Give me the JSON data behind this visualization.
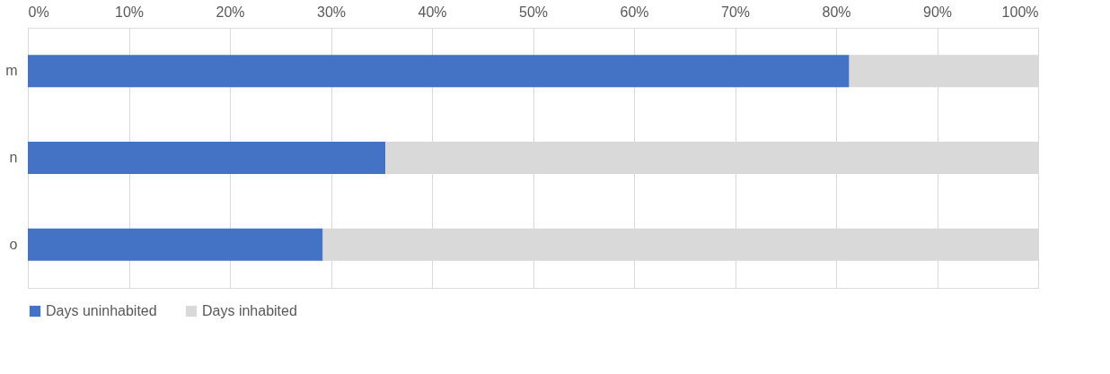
{
  "chart_data": {
    "type": "bar",
    "orientation": "horizontal",
    "stacked": true,
    "categories": [
      "m",
      "n",
      "o"
    ],
    "series": [
      {
        "name": "Days uninhabited",
        "color": "#4472c4",
        "values": [
          81.3,
          35.4,
          29.2
        ]
      },
      {
        "name": "Days inhabited",
        "color": "#d9d9d9",
        "values": [
          18.7,
          64.6,
          70.8
        ]
      }
    ],
    "xlim": [
      0,
      100
    ],
    "xticks": [
      {
        "value": 0,
        "label": "0%"
      },
      {
        "value": 10,
        "label": "10%"
      },
      {
        "value": 20,
        "label": "20%"
      },
      {
        "value": 30,
        "label": "30%"
      },
      {
        "value": 40,
        "label": "40%"
      },
      {
        "value": 50,
        "label": "50%"
      },
      {
        "value": 60,
        "label": "60%"
      },
      {
        "value": 70,
        "label": "70%"
      },
      {
        "value": 80,
        "label": "80%"
      },
      {
        "value": 90,
        "label": "90%"
      },
      {
        "value": 100,
        "label": "100%"
      }
    ],
    "grid": "x",
    "legend": "bottom"
  }
}
